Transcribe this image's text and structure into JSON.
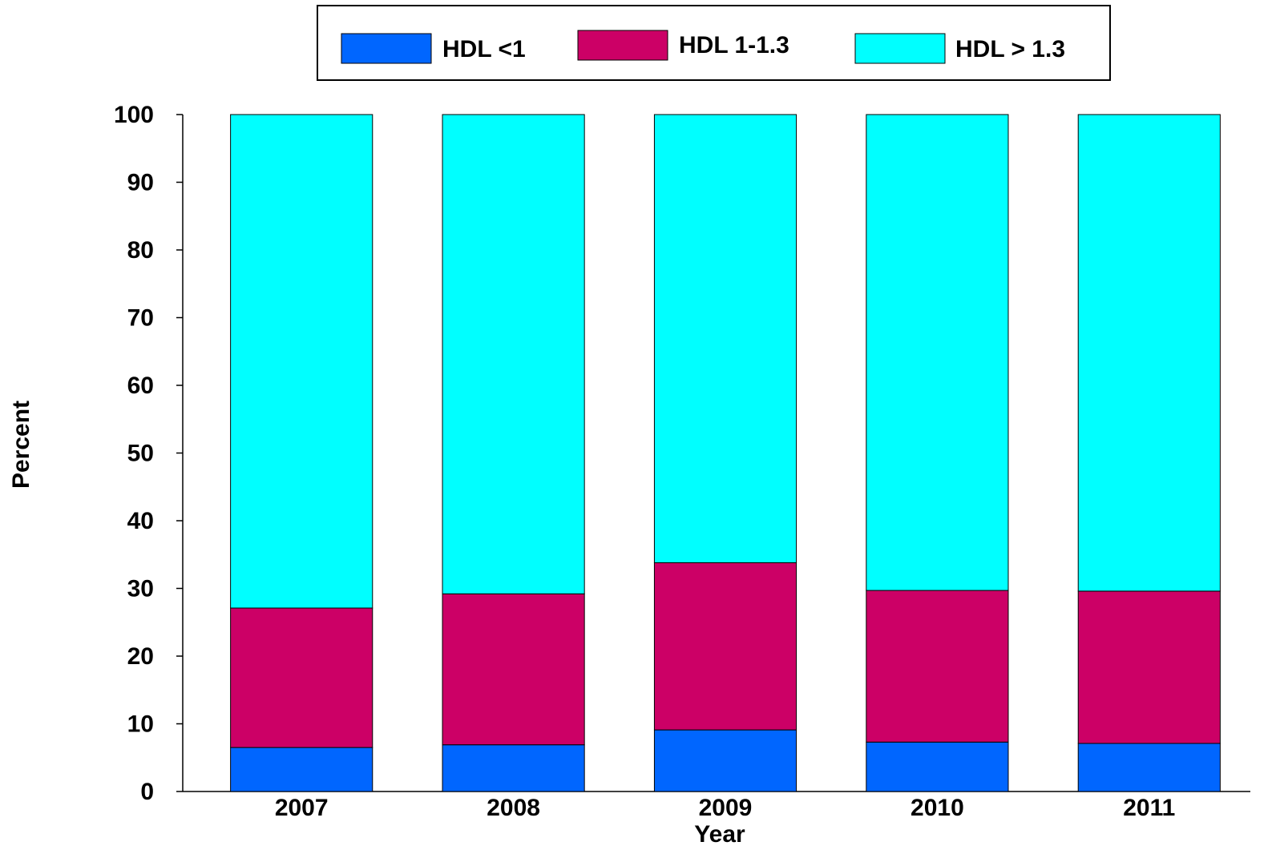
{
  "chart_data": {
    "type": "stacked_bar",
    "x_label": "Year",
    "y_label": "Percent",
    "categories": [
      "2007",
      "2008",
      "2009",
      "2010",
      "2011"
    ],
    "series": [
      {
        "name": "HDL <1",
        "color": "#0066ff",
        "values": [
          6.5,
          6.9,
          9.1,
          7.3,
          7.1
        ]
      },
      {
        "name": "HDL 1-1.3",
        "color": "#cc0066",
        "values": [
          20.6,
          22.3,
          24.7,
          22.4,
          22.5
        ]
      },
      {
        "name": "HDL > 1.3",
        "color": "#00ffff",
        "values": [
          72.9,
          70.8,
          66.2,
          70.3,
          70.4
        ]
      }
    ],
    "ylim": [
      0,
      100
    ],
    "yticks": [
      0,
      10,
      20,
      30,
      40,
      50,
      60,
      70,
      80,
      90,
      100
    ],
    "grid": false,
    "legend": "top"
  }
}
